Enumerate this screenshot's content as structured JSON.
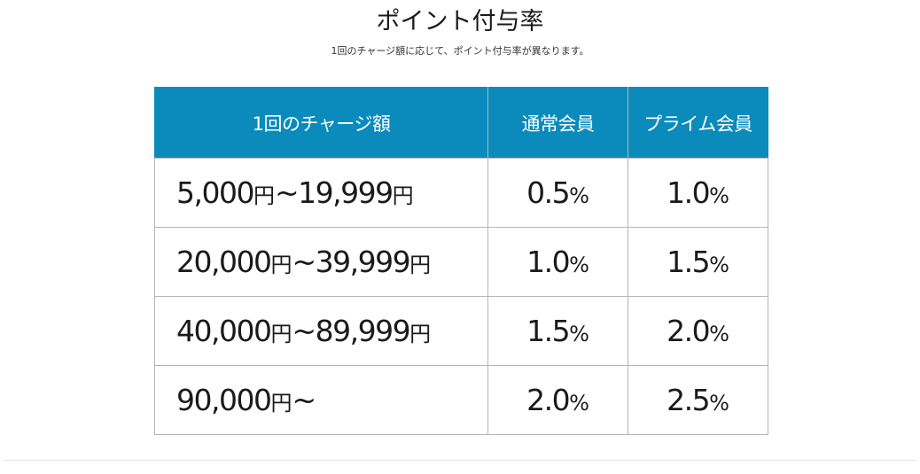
{
  "header": {
    "title": "ポイント付与率",
    "subtitle": "1回のチャージ額に応じて、ポイント付与率が異なります。"
  },
  "table": {
    "headers": {
      "charge": "1回のチャージ額",
      "normal": "通常会員",
      "prime": "プライム会員"
    },
    "yen_unit": "円",
    "percent_unit": "%",
    "rows": [
      {
        "from": "5,000",
        "to": "19,999",
        "normal": "0.5",
        "prime": "1.0"
      },
      {
        "from": "20,000",
        "to": "39,999",
        "normal": "1.0",
        "prime": "1.5"
      },
      {
        "from": "40,000",
        "to": "89,999",
        "normal": "1.5",
        "prime": "2.0"
      },
      {
        "from": "90,000",
        "to": "",
        "normal": "2.0",
        "prime": "2.5"
      }
    ]
  },
  "colors": {
    "header_bg": "#0a8bbb",
    "header_text": "#ffffff",
    "border": "#b5b5b5"
  }
}
